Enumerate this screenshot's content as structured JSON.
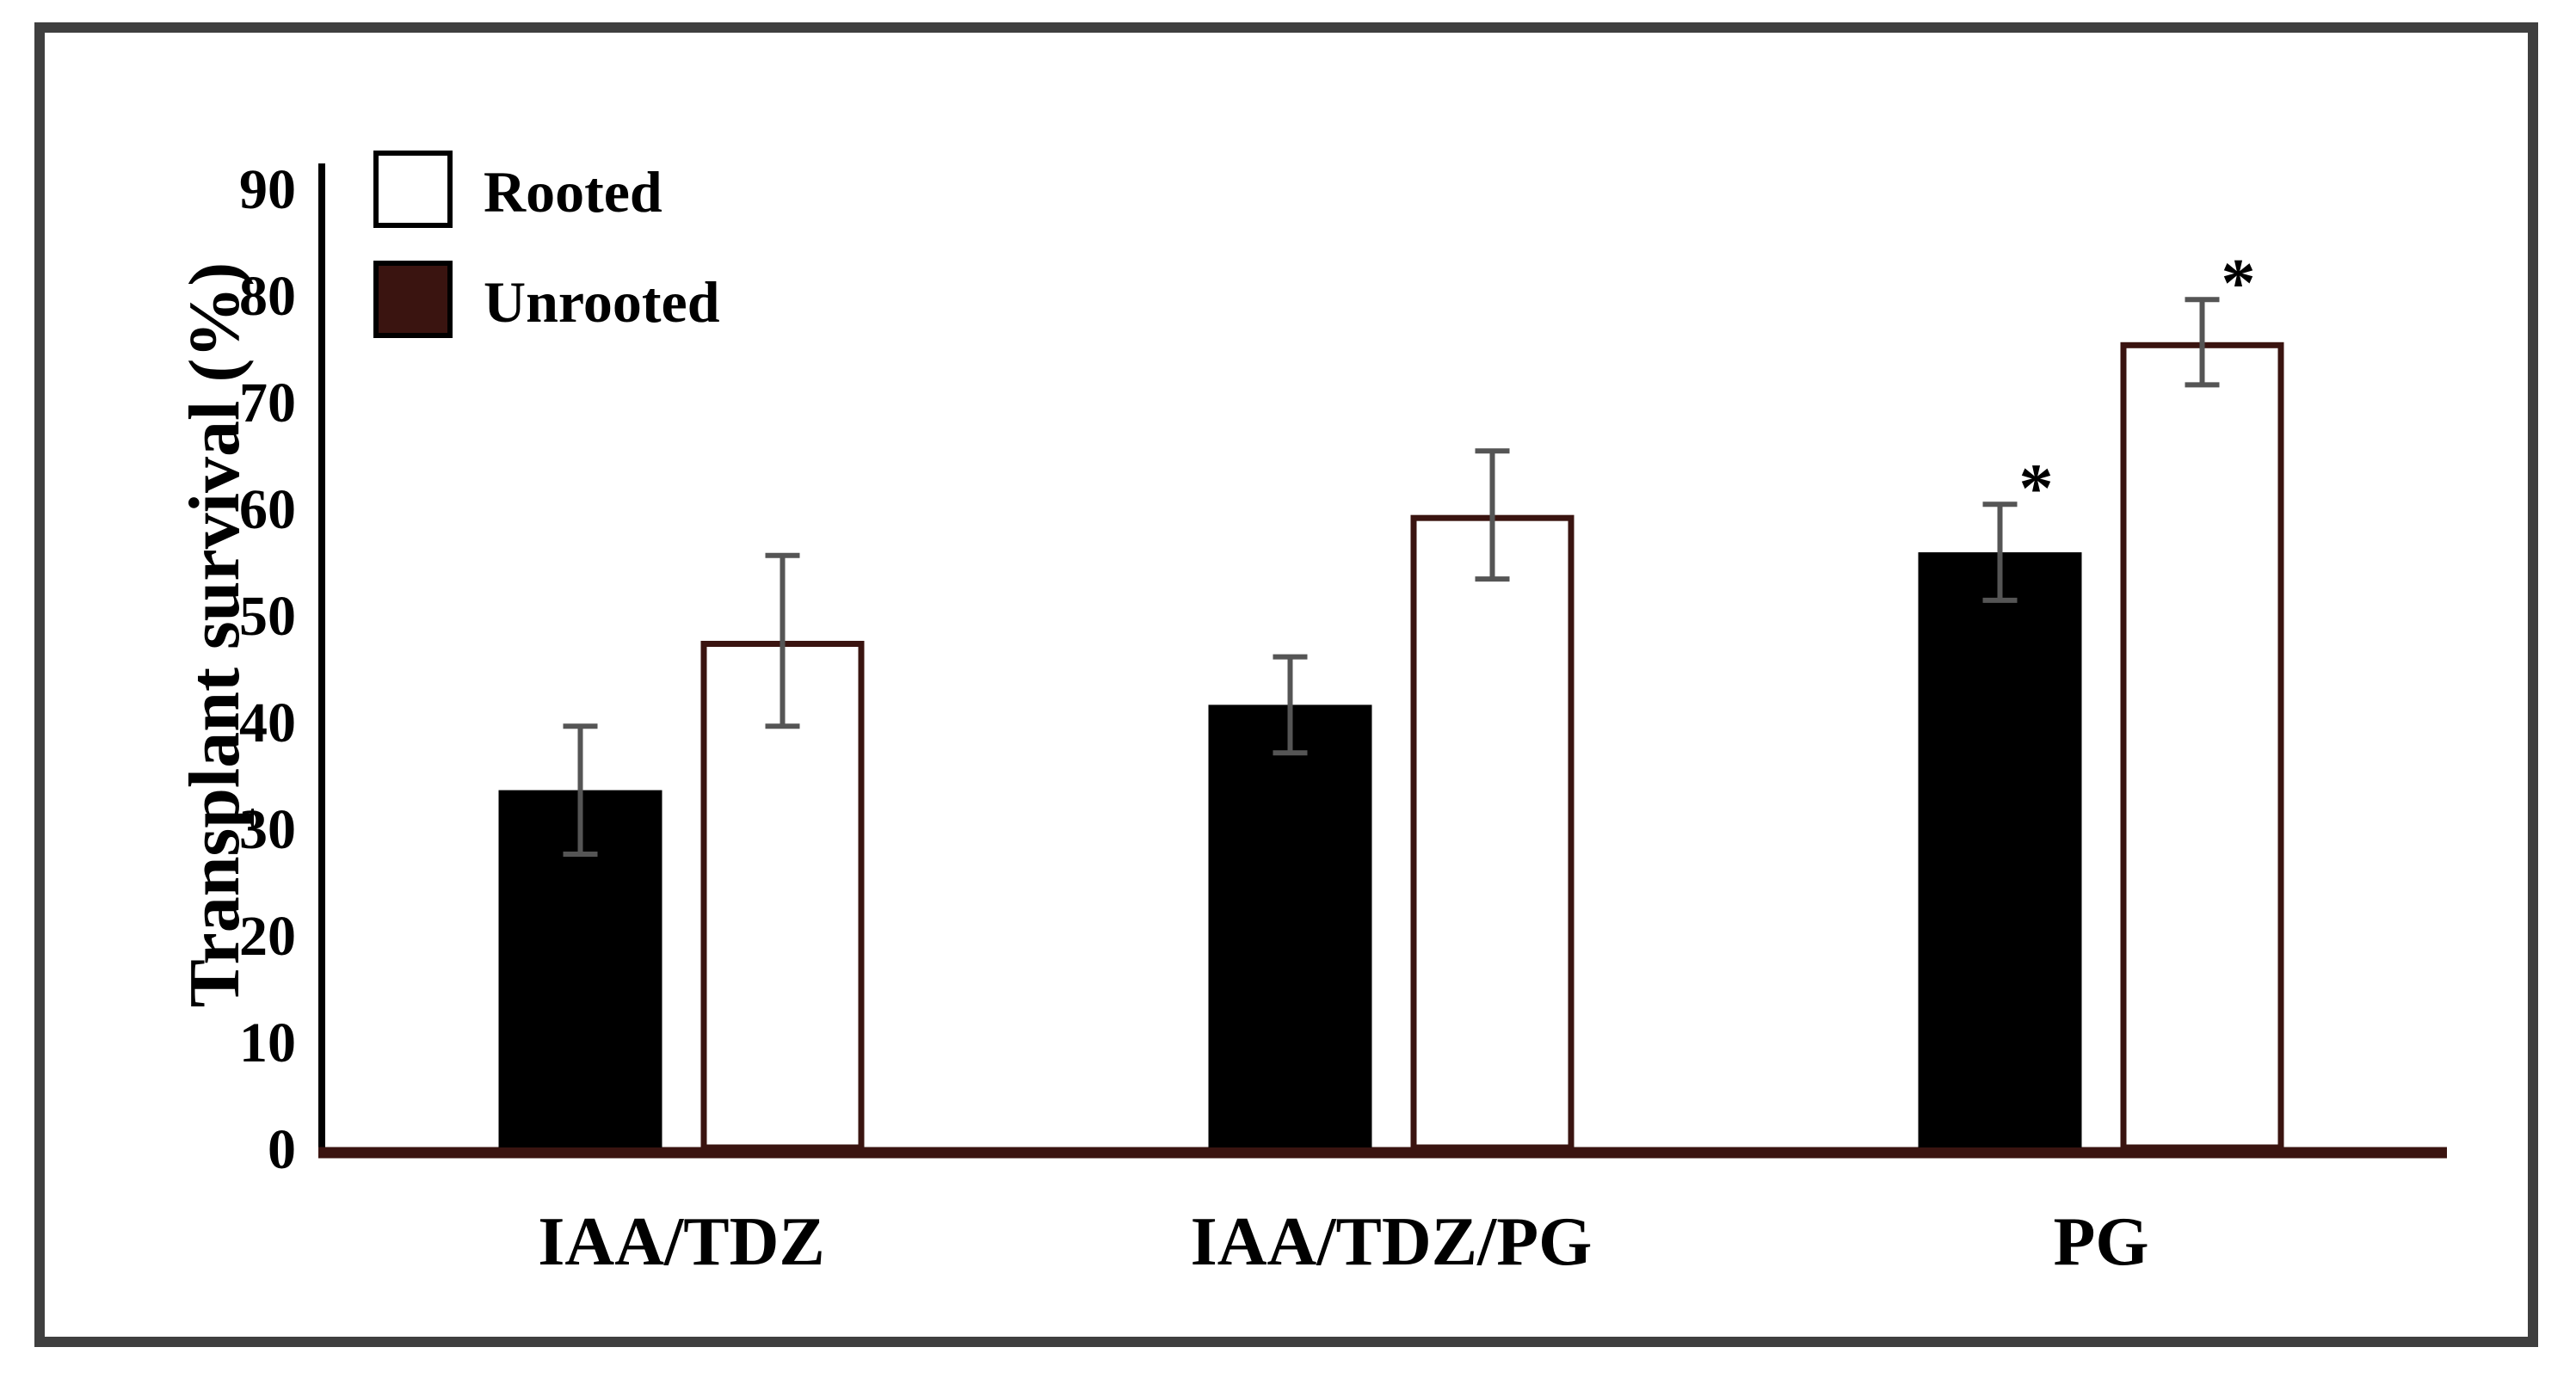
{
  "chart_data": {
    "type": "bar",
    "title": "",
    "xlabel": "",
    "ylabel": "Transplant survival (%)",
    "ylim": [
      0,
      90
    ],
    "yticks": [
      "0",
      "10",
      "20",
      "30",
      "40",
      "50",
      "60",
      "70",
      "80",
      "90"
    ],
    "categories": [
      "IAA/TDZ",
      "IAA/TDZ/PG",
      "PG"
    ],
    "series": [
      {
        "name": "Unrooted",
        "fill": "#000000",
        "legend_fill": "#3a1410",
        "values": [
          33.5,
          41.5,
          55.8
        ],
        "errors": [
          6.0,
          4.5,
          4.5
        ],
        "annotations": [
          "",
          "",
          "*"
        ]
      },
      {
        "name": "Rooted",
        "fill": "#ffffff",
        "stroke": "#3a1410",
        "values": [
          47.5,
          59.3,
          75.5
        ],
        "errors": [
          8.0,
          6.0,
          4.0
        ],
        "annotations": [
          "",
          "",
          "*"
        ]
      }
    ],
    "legend": {
      "position": "top-left",
      "entries": [
        "Rooted",
        "Unrooted"
      ]
    },
    "colors": {
      "axis_x": "#3a1410",
      "axis_y": "#000000",
      "error_bar": "#555555",
      "frame": "#3f3f3f"
    },
    "grid": false
  }
}
